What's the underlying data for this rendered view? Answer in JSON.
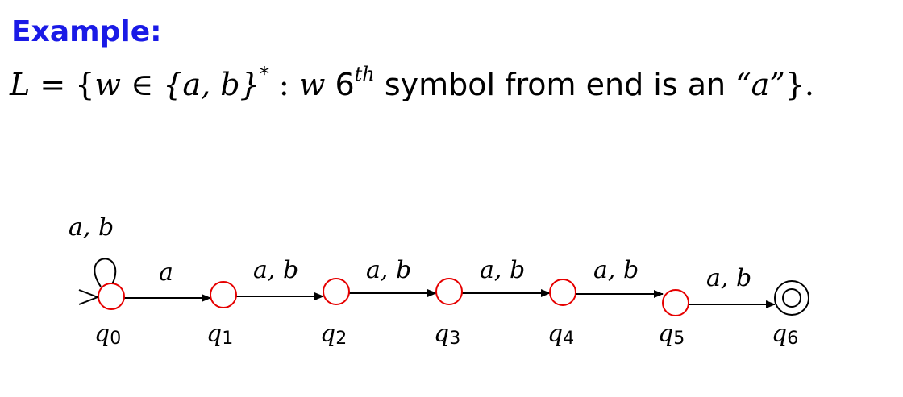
{
  "header": {
    "title": "Example:"
  },
  "definition": {
    "lhs": "L",
    "eq": "=",
    "lbrace": "{",
    "var": "w",
    "in": "∈",
    "alphabet": "{a, b}",
    "star": "*",
    "colon": ":",
    "var2": "w",
    "pos": "6",
    "pos_sup": "th",
    "text": "symbol from end is an",
    "quoted": "“a”",
    "rbrace": "}."
  },
  "automaton": {
    "states": [
      {
        "id": "q0",
        "name": "q",
        "sub": "0",
        "accepting": false,
        "initial": true
      },
      {
        "id": "q1",
        "name": "q",
        "sub": "1",
        "accepting": false,
        "initial": false
      },
      {
        "id": "q2",
        "name": "q",
        "sub": "2",
        "accepting": false,
        "initial": false
      },
      {
        "id": "q3",
        "name": "q",
        "sub": "3",
        "accepting": false,
        "initial": false
      },
      {
        "id": "q4",
        "name": "q",
        "sub": "4",
        "accepting": false,
        "initial": false
      },
      {
        "id": "q5",
        "name": "q",
        "sub": "5",
        "accepting": false,
        "initial": false
      },
      {
        "id": "q6",
        "name": "q",
        "sub": "6",
        "accepting": true,
        "initial": false
      }
    ],
    "transitions": [
      {
        "from": "q0",
        "to": "q0",
        "label": "a, b"
      },
      {
        "from": "q0",
        "to": "q1",
        "label": "a"
      },
      {
        "from": "q1",
        "to": "q2",
        "label": "a, b"
      },
      {
        "from": "q2",
        "to": "q3",
        "label": "a, b"
      },
      {
        "from": "q3",
        "to": "q4",
        "label": "a, b"
      },
      {
        "from": "q4",
        "to": "q5",
        "label": "a, b"
      },
      {
        "from": "q5",
        "to": "q6",
        "label": "a, b"
      }
    ],
    "state_color": "#e60000",
    "final_color": "#000000",
    "edge_color": "#000000"
  }
}
